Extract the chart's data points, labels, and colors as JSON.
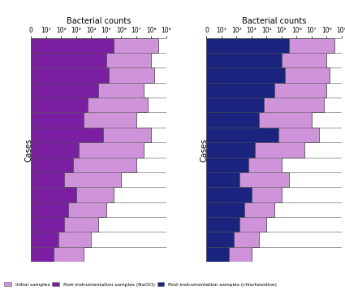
{
  "title": "Bacterial counts",
  "ylabel": "Cases",
  "n_cases": 15,
  "xmax": 9,
  "left_initial": [
    8.5,
    8.0,
    8.2,
    7.5,
    7.8,
    7.0,
    8.0,
    7.5,
    7.0,
    6.0,
    5.5,
    5.0,
    4.5,
    4.0,
    3.5
  ],
  "left_post": [
    5.5,
    5.0,
    5.2,
    4.5,
    3.8,
    3.5,
    4.8,
    3.2,
    2.8,
    2.2,
    3.0,
    2.5,
    2.2,
    1.8,
    1.5
  ],
  "right_initial": [
    8.5,
    8.0,
    8.2,
    8.0,
    7.8,
    7.0,
    7.5,
    6.5,
    5.0,
    5.5,
    5.0,
    4.5,
    4.0,
    3.5,
    3.0
  ],
  "right_post": [
    5.5,
    5.0,
    5.2,
    4.5,
    3.8,
    3.5,
    4.8,
    3.2,
    2.8,
    2.2,
    3.0,
    2.5,
    2.2,
    1.8,
    1.5
  ],
  "initial_color": "#ce93d8",
  "left_post_color": "#7b1fa2",
  "right_post_color": "#1a237e",
  "line_color": "#555555",
  "legend_labels": [
    "Initial samples",
    "Post-instrumentation samples (NaOCl)",
    "Post-instrumentation samples (chlorhexidine)"
  ],
  "legend_colors": [
    "#ce93d8",
    "#7b1fa2",
    "#1a237e"
  ],
  "xtick_labels": [
    "0",
    "10¹",
    "10²",
    "10³",
    "10⁴",
    "10⁵",
    "10⁶",
    "10⁷",
    "10⁸",
    "10⁹"
  ],
  "xtick_positions": [
    0,
    1,
    2,
    3,
    4,
    5,
    6,
    7,
    8,
    9
  ]
}
